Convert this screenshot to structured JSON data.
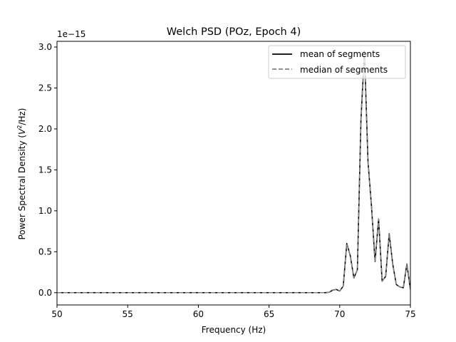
{
  "chart_data": {
    "type": "line",
    "title": "Welch PSD (POz, Epoch 4)",
    "xlabel": "Frequency (Hz)",
    "ylabel_prefix": "Power Spectral Density (",
    "ylabel_var": "V",
    "ylabel_sup": "2",
    "ylabel_suffix": "/Hz)",
    "y_offset_text": "1e−15",
    "xlim": [
      50,
      75
    ],
    "ylim": [
      -0.15,
      3.07
    ],
    "x_ticks": [
      50,
      55,
      60,
      65,
      70,
      75
    ],
    "x_tick_labels": [
      "50",
      "55",
      "60",
      "65",
      "70",
      "75"
    ],
    "y_ticks": [
      0.0,
      0.5,
      1.0,
      1.5,
      2.0,
      2.5,
      3.0
    ],
    "y_tick_labels": [
      "0.0",
      "0.5",
      "1.0",
      "1.5",
      "2.0",
      "2.5",
      "3.0"
    ],
    "grid": false,
    "legend_position": "upper right",
    "x": [
      50.0,
      69.0,
      69.25,
      69.5,
      69.75,
      70.0,
      70.25,
      70.5,
      70.75,
      71.0,
      71.25,
      71.5,
      71.75,
      72.0,
      72.25,
      72.5,
      72.75,
      73.0,
      73.25,
      73.5,
      73.75,
      74.0,
      74.25,
      74.5,
      74.75,
      75.0
    ],
    "series": [
      {
        "name": "mean of segments",
        "color": "#000000",
        "dash": "solid",
        "values": [
          0.0,
          0.0,
          0.005,
          0.03,
          0.04,
          0.02,
          0.08,
          0.6,
          0.45,
          0.18,
          0.28,
          2.1,
          2.95,
          1.6,
          1.05,
          0.38,
          0.9,
          0.14,
          0.2,
          0.72,
          0.35,
          0.1,
          0.07,
          0.06,
          0.35,
          0.04
        ]
      },
      {
        "name": "median of segments",
        "color": "#808080",
        "dash": "dashed",
        "values": [
          0.0,
          0.0,
          0.005,
          0.03,
          0.04,
          0.02,
          0.08,
          0.6,
          0.45,
          0.18,
          0.28,
          2.1,
          2.95,
          1.6,
          1.05,
          0.38,
          0.9,
          0.14,
          0.2,
          0.72,
          0.35,
          0.1,
          0.07,
          0.06,
          0.35,
          0.04
        ]
      }
    ]
  }
}
